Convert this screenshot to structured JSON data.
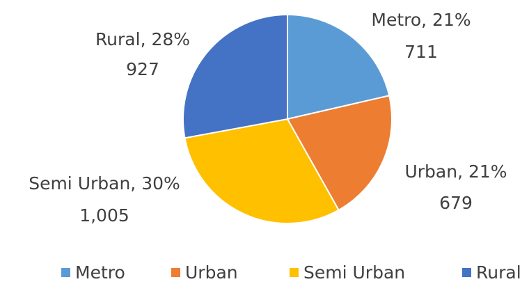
{
  "chart_data": {
    "type": "pie",
    "categories": [
      "Metro",
      "Urban",
      "Semi Urban",
      "Rural"
    ],
    "values": [
      711,
      679,
      1005,
      927
    ],
    "value_labels": [
      "711",
      "679",
      "1,005",
      "927"
    ],
    "data_labels": [
      "Metro, 21%",
      "Urban, 21%",
      "Semi Urban, 30%",
      "Rural, 28%"
    ],
    "colors": [
      "#5b9bd5",
      "#ed7d31",
      "#ffc000",
      "#4472c4"
    ],
    "legend": "bottom"
  }
}
